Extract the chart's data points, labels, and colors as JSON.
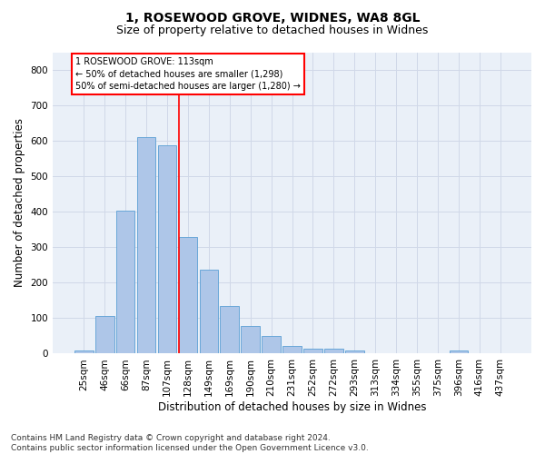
{
  "title1": "1, ROSEWOOD GROVE, WIDNES, WA8 8GL",
  "title2": "Size of property relative to detached houses in Widnes",
  "xlabel": "Distribution of detached houses by size in Widnes",
  "ylabel": "Number of detached properties",
  "footer1": "Contains HM Land Registry data © Crown copyright and database right 2024.",
  "footer2": "Contains public sector information licensed under the Open Government Licence v3.0.",
  "annotation_line1": "1 ROSEWOOD GROVE: 113sqm",
  "annotation_line2": "← 50% of detached houses are smaller (1,298)",
  "annotation_line3": "50% of semi-detached houses are larger (1,280) →",
  "bar_categories": [
    "25sqm",
    "46sqm",
    "66sqm",
    "87sqm",
    "107sqm",
    "128sqm",
    "149sqm",
    "169sqm",
    "190sqm",
    "210sqm",
    "231sqm",
    "252sqm",
    "272sqm",
    "293sqm",
    "313sqm",
    "334sqm",
    "355sqm",
    "375sqm",
    "396sqm",
    "416sqm",
    "437sqm"
  ],
  "bar_values": [
    8,
    107,
    403,
    611,
    588,
    328,
    238,
    135,
    77,
    49,
    22,
    15,
    15,
    8,
    0,
    0,
    0,
    0,
    8,
    0,
    0
  ],
  "bar_color": "#aec6e8",
  "bar_edgecolor": "#5a9fd4",
  "grid_color": "#d0d8e8",
  "bg_color": "#eaf0f8",
  "vline_x": 4.57,
  "vline_color": "red",
  "ylim": [
    0,
    850
  ],
  "yticks": [
    0,
    100,
    200,
    300,
    400,
    500,
    600,
    700,
    800
  ],
  "annotation_box_color": "red",
  "title1_fontsize": 10,
  "title2_fontsize": 9,
  "xlabel_fontsize": 8.5,
  "ylabel_fontsize": 8.5,
  "footer_fontsize": 6.5,
  "tick_fontsize": 7.5
}
